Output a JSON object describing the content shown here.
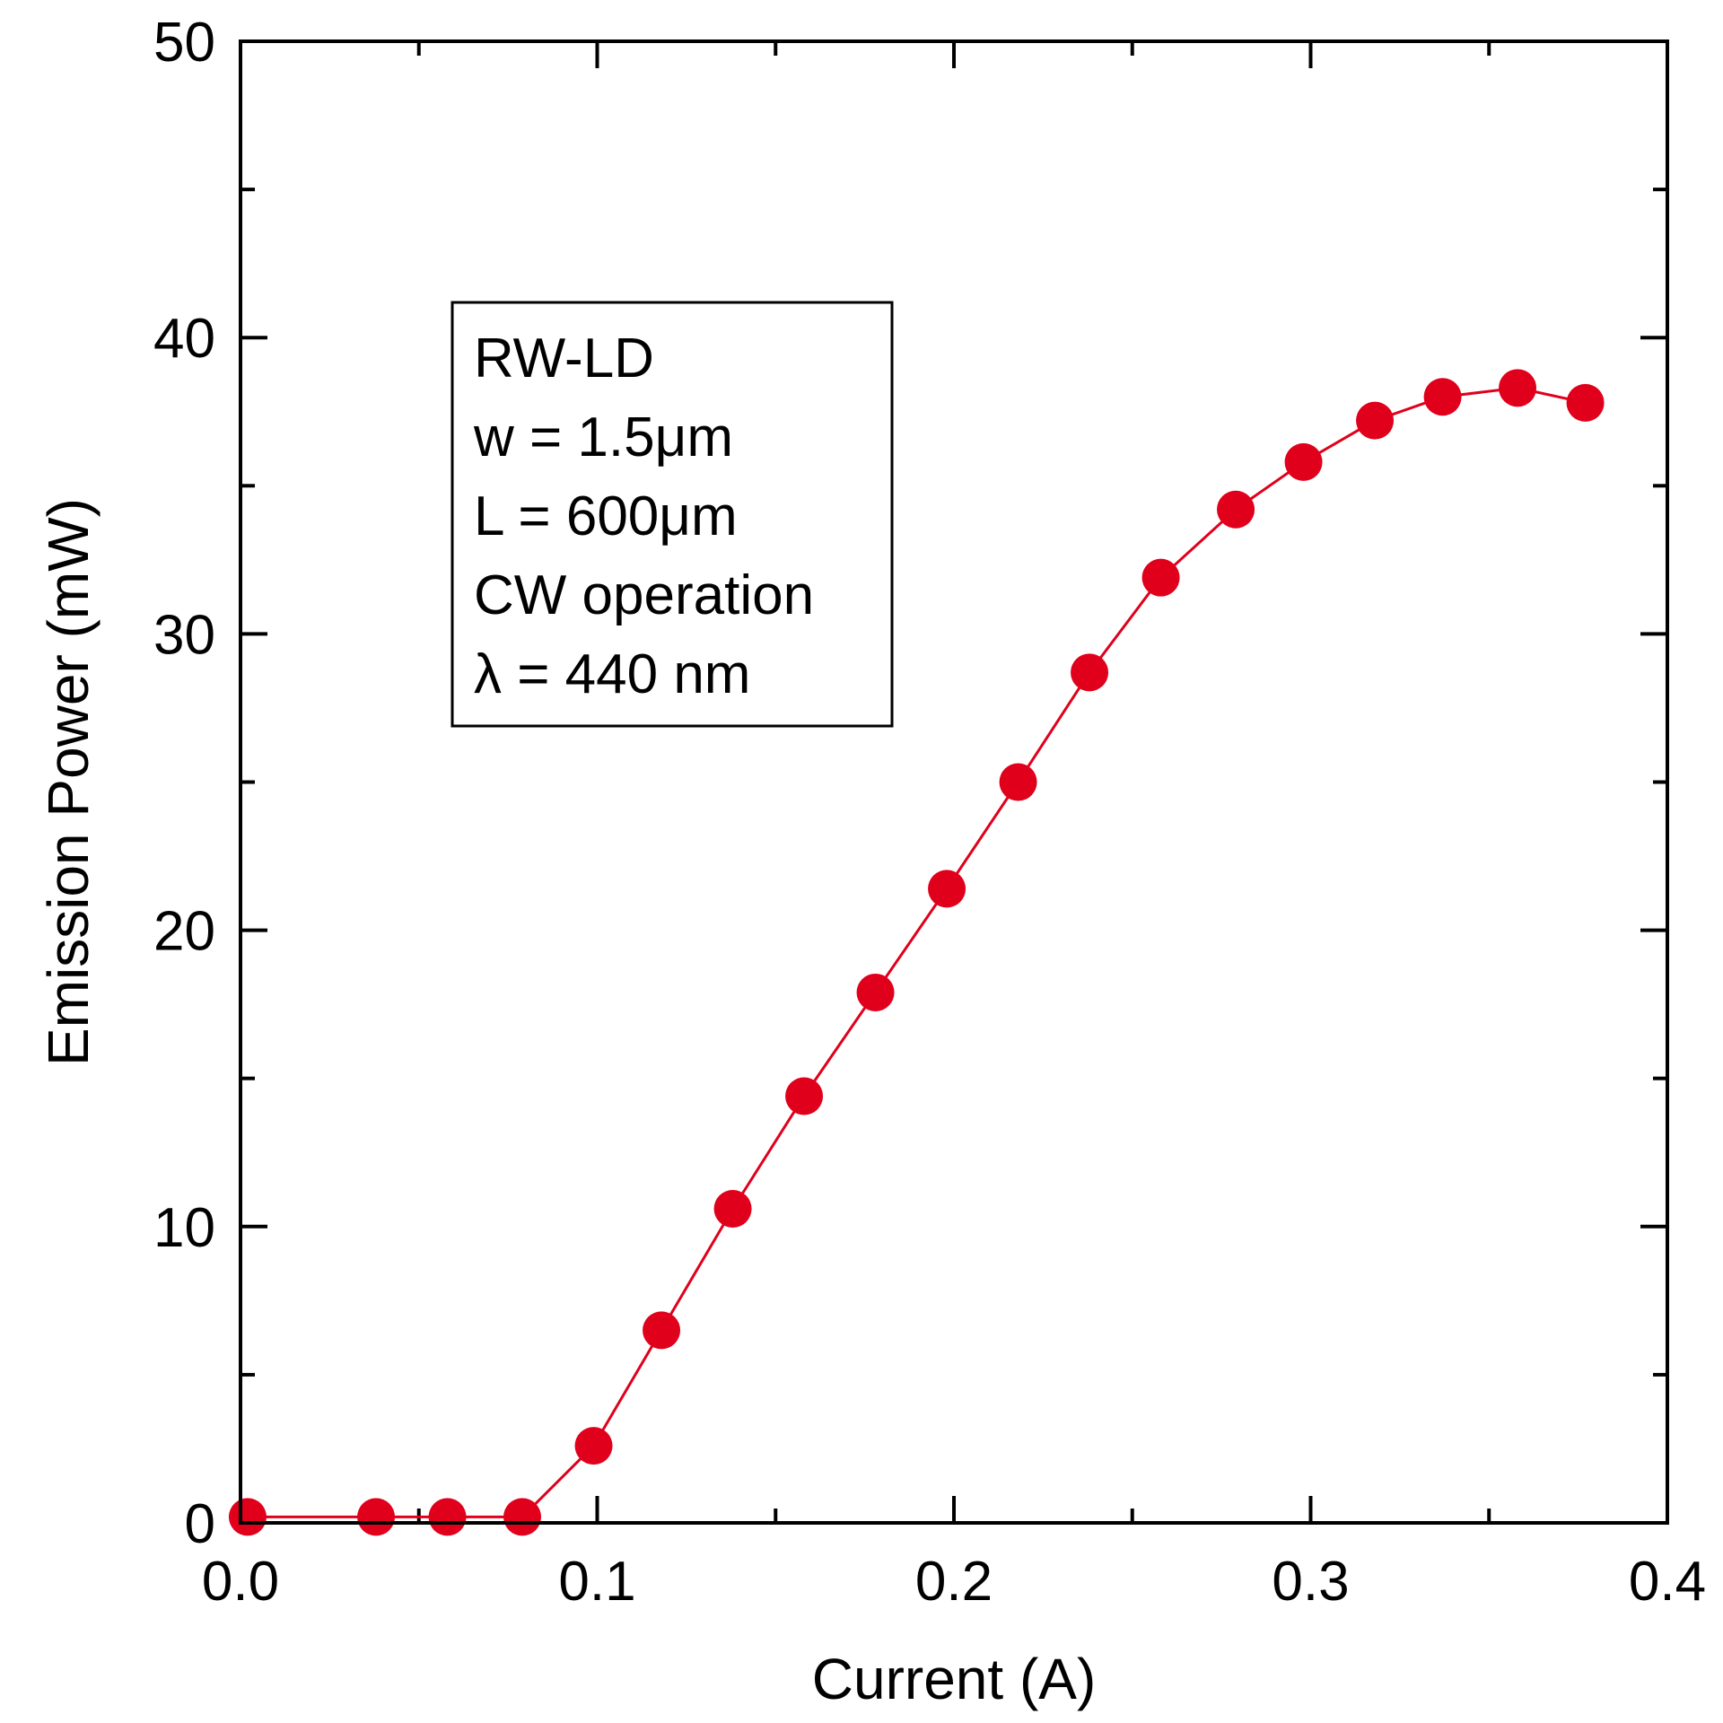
{
  "chart_data": {
    "type": "scatter",
    "xlabel": "Current (A)",
    "ylabel": "Emission Power (mW)",
    "xlim": [
      0.0,
      0.4
    ],
    "ylim": [
      0,
      50
    ],
    "x_ticks": [
      0.0,
      0.1,
      0.2,
      0.3,
      0.4
    ],
    "x_tick_labels": [
      "0.0",
      "0.1",
      "0.2",
      "0.3",
      "0.4"
    ],
    "y_ticks": [
      0,
      10,
      20,
      30,
      40,
      50
    ],
    "y_tick_labels": [
      "0",
      "10",
      "20",
      "30",
      "40",
      "50"
    ],
    "grid": false,
    "legend_box": {
      "lines": [
        "RW-LD",
        "w = 1.5μm",
        "L = 600μm",
        "CW operation",
        "λ = 440 nm"
      ],
      "placement": "upper-left"
    },
    "series": [
      {
        "color": "#e0001b",
        "line_style": "solid",
        "x": [
          0.002,
          0.038,
          0.058,
          0.079,
          0.099,
          0.118,
          0.138,
          0.158,
          0.178,
          0.198,
          0.218,
          0.238,
          0.258,
          0.279,
          0.298,
          0.318,
          0.337,
          0.358,
          0.377
        ],
        "y": [
          0.2,
          0.2,
          0.2,
          0.2,
          2.6,
          6.5,
          10.6,
          14.4,
          17.9,
          21.4,
          25.0,
          28.7,
          31.9,
          34.2,
          35.8,
          37.2,
          38.0,
          38.3,
          37.8
        ]
      }
    ]
  }
}
